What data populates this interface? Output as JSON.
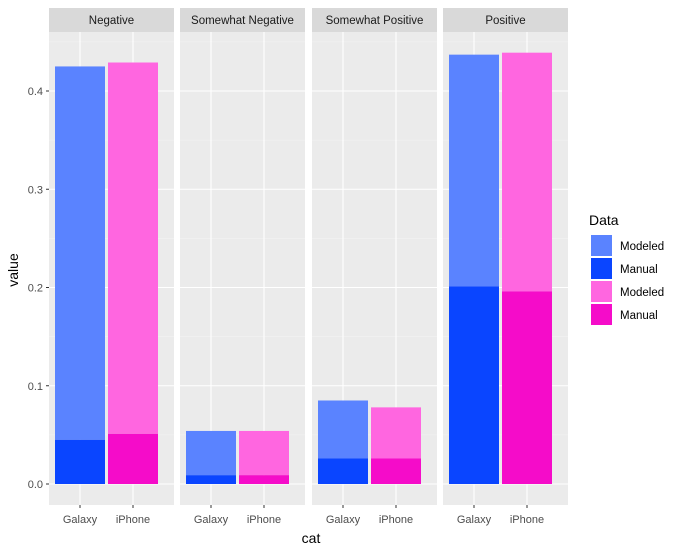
{
  "chart_data": {
    "type": "bar",
    "stacked": true,
    "facets": [
      "Negative",
      "Somewhat Negative",
      "Somewhat Positive",
      "Positive"
    ],
    "categories": [
      "Galaxy",
      "iPhone"
    ],
    "xlabel": "cat",
    "ylabel": "value",
    "ylim": [
      0,
      0.45
    ],
    "y_ticks": [
      "0.0",
      "0.1",
      "0.2",
      "0.3",
      "0.4"
    ],
    "legend_title": "Data",
    "legend_position": "right",
    "legend": [
      {
        "label": "Modeled",
        "color": "#5a83ff"
      },
      {
        "label": "Manual",
        "color": "#0a45ff"
      },
      {
        "label": "Modeled",
        "color": "#ff66e0"
      },
      {
        "label": "Manual",
        "color": "#f50cc9"
      }
    ],
    "grid": true,
    "panels": [
      {
        "facet": "Negative",
        "bars": [
          {
            "category": "Galaxy",
            "total": 0.425,
            "manual": 0.045,
            "modeled_color": "#5a83ff",
            "manual_color": "#0a45ff"
          },
          {
            "category": "iPhone",
            "total": 0.429,
            "manual": 0.051,
            "modeled_color": "#ff66e0",
            "manual_color": "#f50cc9"
          }
        ]
      },
      {
        "facet": "Somewhat Negative",
        "bars": [
          {
            "category": "Galaxy",
            "total": 0.054,
            "manual": 0.009,
            "modeled_color": "#5a83ff",
            "manual_color": "#0a45ff"
          },
          {
            "category": "iPhone",
            "total": 0.054,
            "manual": 0.009,
            "modeled_color": "#ff66e0",
            "manual_color": "#f50cc9"
          }
        ]
      },
      {
        "facet": "Somewhat Positive",
        "bars": [
          {
            "category": "Galaxy",
            "total": 0.085,
            "manual": 0.026,
            "modeled_color": "#5a83ff",
            "manual_color": "#0a45ff"
          },
          {
            "category": "iPhone",
            "total": 0.078,
            "manual": 0.026,
            "modeled_color": "#ff66e0",
            "manual_color": "#f50cc9"
          }
        ]
      },
      {
        "facet": "Positive",
        "bars": [
          {
            "category": "Galaxy",
            "total": 0.437,
            "manual": 0.201,
            "modeled_color": "#5a83ff",
            "manual_color": "#0a45ff"
          },
          {
            "category": "iPhone",
            "total": 0.439,
            "manual": 0.196,
            "modeled_color": "#ff66e0",
            "manual_color": "#f50cc9"
          }
        ]
      }
    ]
  }
}
